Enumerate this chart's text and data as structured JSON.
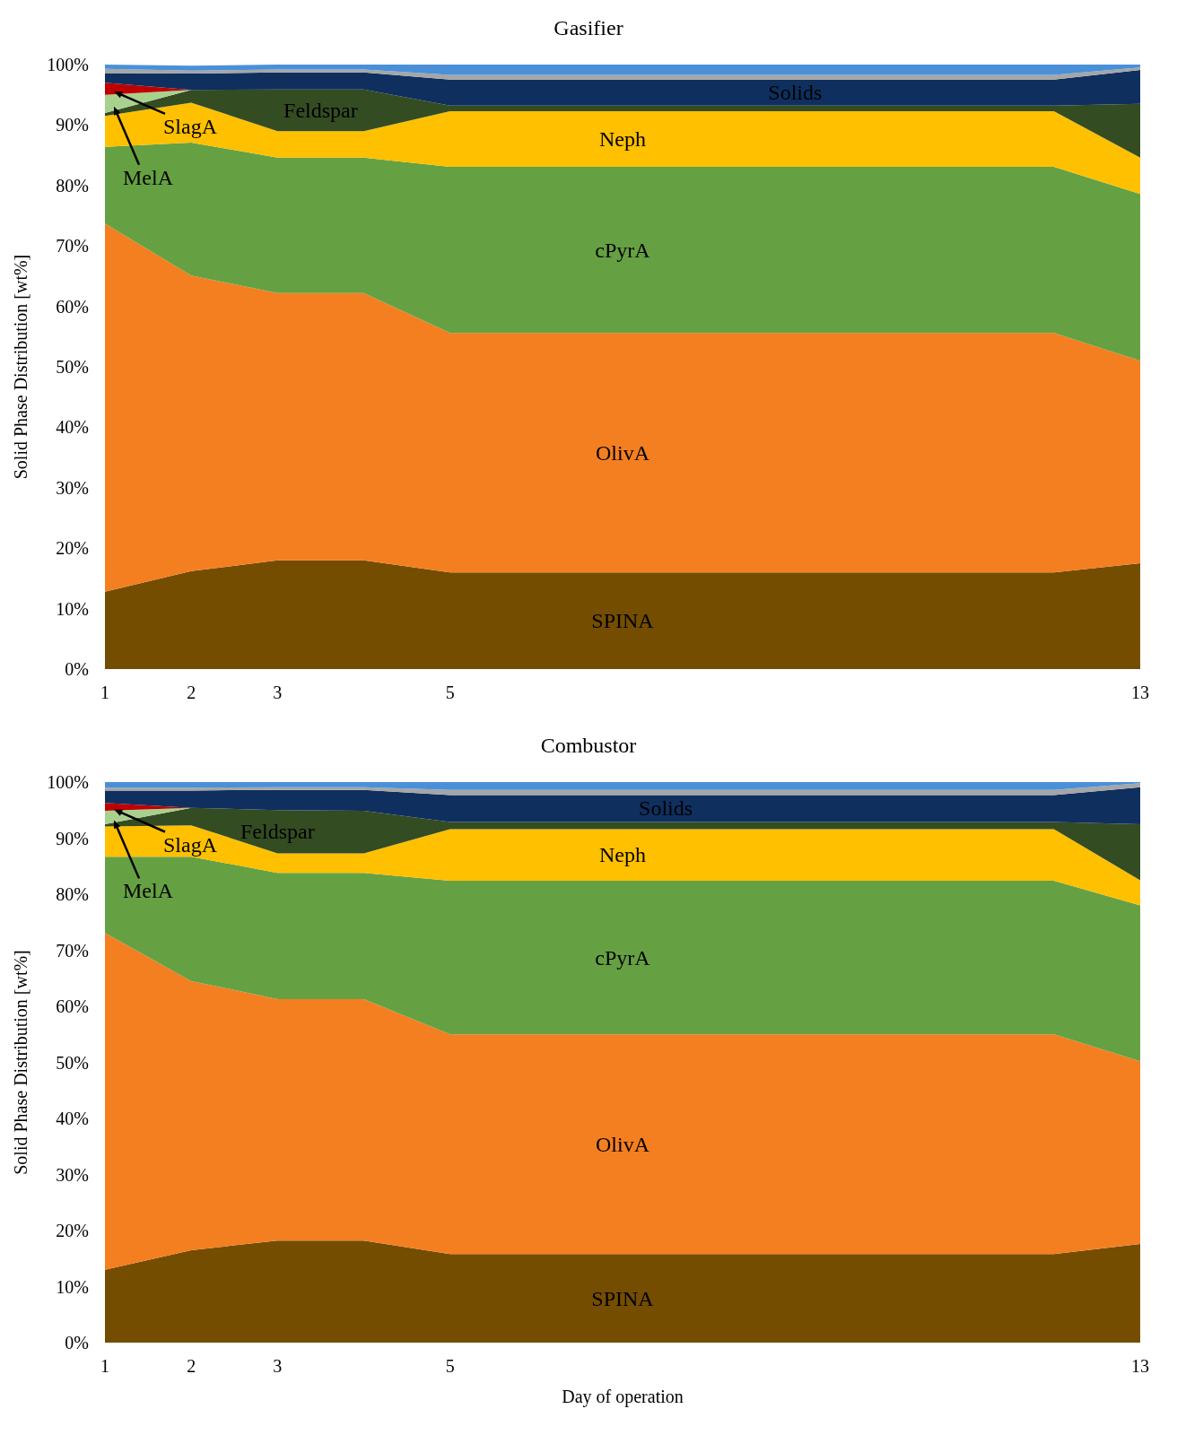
{
  "chart_data": [
    {
      "type": "area",
      "title": "Gasifier",
      "ylabel": "Solid Phase Distribution [wt%]",
      "stacked": true,
      "x": [
        1,
        2,
        3,
        4,
        5,
        12,
        13
      ],
      "xlim": [
        1,
        13
      ],
      "xticks": [
        1,
        2,
        3,
        5,
        13
      ],
      "ylim": [
        0,
        100
      ],
      "yticks": [
        {
          "value": 0,
          "label": "0%"
        },
        {
          "value": 10,
          "label": "10%"
        },
        {
          "value": 20,
          "label": "20%"
        },
        {
          "value": 30,
          "label": "30%"
        },
        {
          "value": 40,
          "label": "40%"
        },
        {
          "value": 50,
          "label": "50%"
        },
        {
          "value": 60,
          "label": "60%"
        },
        {
          "value": 70,
          "label": "70%"
        },
        {
          "value": 80,
          "label": "80%"
        },
        {
          "value": 90,
          "label": "90%"
        },
        {
          "value": 100,
          "label": "100%"
        }
      ],
      "series": [
        {
          "name": "SPINA",
          "color": "#744d00",
          "values": [
            12.8,
            16.2,
            18.0,
            18.0,
            16.0,
            16.0,
            17.5
          ]
        },
        {
          "name": "OlivA",
          "color": "#f47f20",
          "values": [
            60.9,
            48.9,
            44.2,
            44.2,
            39.6,
            39.6,
            33.5
          ]
        },
        {
          "name": "cPyrA",
          "color": "#65a143",
          "values": [
            12.7,
            22.0,
            22.4,
            22.4,
            27.5,
            27.5,
            27.6
          ]
        },
        {
          "name": "Neph",
          "color": "#ffc000",
          "values": [
            5.1,
            6.6,
            4.4,
            4.4,
            9.2,
            9.2,
            6.0
          ]
        },
        {
          "name": "Feldspar",
          "color": "#344c22",
          "values": [
            0.5,
            2.1,
            6.9,
            6.9,
            0.9,
            0.9,
            8.9
          ]
        },
        {
          "name": "MelA",
          "color": "#a9d18e",
          "values": [
            3.0,
            0,
            0,
            0,
            0,
            0,
            0
          ]
        },
        {
          "name": "SlagA",
          "color": "#c00000",
          "values": [
            2.0,
            0,
            0,
            0,
            0,
            0,
            0
          ]
        },
        {
          "name": "Solids",
          "color": "#0f2f5f",
          "values": [
            1.6,
            2.7,
            2.8,
            2.8,
            4.3,
            4.3,
            5.6
          ]
        },
        {
          "color": "#a6a6a6",
          "values": [
            0.7,
            0.5,
            0.5,
            0.5,
            0.8,
            0.8,
            0.4
          ]
        },
        {
          "color": "#4a90d9",
          "values": [
            0.7,
            0.8,
            0.8,
            0.8,
            1.7,
            1.7,
            0.5
          ]
        }
      ]
    },
    {
      "type": "area",
      "title": "Combustor",
      "xlabel": "Day of operation",
      "ylabel": "Solid Phase Distribution [wt%]",
      "stacked": true,
      "x": [
        1,
        2,
        3,
        4,
        5,
        12,
        13
      ],
      "xlim": [
        1,
        13
      ],
      "xticks": [
        1,
        2,
        3,
        5,
        13
      ],
      "ylim": [
        0,
        100
      ],
      "yticks": [
        {
          "value": 0,
          "label": "0%"
        },
        {
          "value": 10,
          "label": "10%"
        },
        {
          "value": 20,
          "label": "20%"
        },
        {
          "value": 30,
          "label": "30%"
        },
        {
          "value": 40,
          "label": "40%"
        },
        {
          "value": 50,
          "label": "50%"
        },
        {
          "value": 60,
          "label": "60%"
        },
        {
          "value": 70,
          "label": "70%"
        },
        {
          "value": 80,
          "label": "80%"
        },
        {
          "value": 90,
          "label": "90%"
        },
        {
          "value": 100,
          "label": "100%"
        }
      ],
      "series": [
        {
          "name": "SPINA",
          "color": "#744d00",
          "values": [
            13.0,
            16.5,
            18.2,
            18.2,
            15.8,
            15.8,
            17.6
          ]
        },
        {
          "name": "OlivA",
          "color": "#f47f20",
          "values": [
            60.1,
            48.0,
            43.1,
            43.1,
            39.2,
            39.2,
            32.6
          ]
        },
        {
          "name": "cPyrA",
          "color": "#65a143",
          "values": [
            13.6,
            22.2,
            22.5,
            22.5,
            27.4,
            27.4,
            27.8
          ]
        },
        {
          "name": "Neph",
          "color": "#ffc000",
          "values": [
            5.4,
            5.6,
            3.5,
            3.5,
            9.2,
            9.2,
            4.5
          ]
        },
        {
          "name": "Feldspar",
          "color": "#344c22",
          "values": [
            0.4,
            3.1,
            7.7,
            7.6,
            1.3,
            1.3,
            10.0
          ]
        },
        {
          "name": "MelA",
          "color": "#a9d18e",
          "values": [
            2.4,
            0,
            0,
            0,
            0,
            0,
            0
          ]
        },
        {
          "name": "SlagA",
          "color": "#c00000",
          "values": [
            1.4,
            0,
            0,
            0,
            0,
            0,
            0
          ]
        },
        {
          "name": "Solids",
          "color": "#0f2f5f",
          "values": [
            2.2,
            3.1,
            3.6,
            3.7,
            4.8,
            4.8,
            6.6
          ]
        },
        {
          "color": "#a6a6a6",
          "values": [
            0.5,
            0.5,
            0.5,
            0.5,
            0.9,
            0.9,
            0.7
          ]
        },
        {
          "color": "#4a90d9",
          "values": [
            1.0,
            1.0,
            1.0,
            1.0,
            1.4,
            1.4,
            0.2
          ]
        }
      ]
    }
  ]
}
